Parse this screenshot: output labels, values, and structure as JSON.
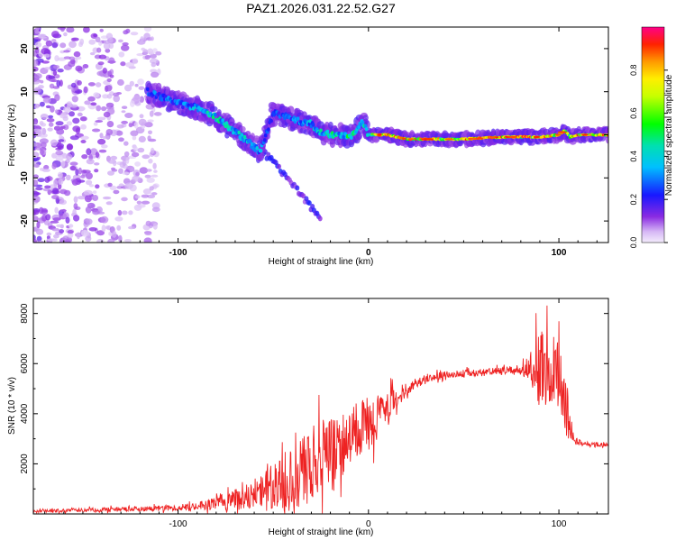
{
  "title": "PAZ1.2026.031.22.52.G27",
  "chart_data": [
    {
      "type": "heatmap",
      "name": "spectrogram",
      "xlabel": "Height of straight line (km)",
      "ylabel": "Frequency (Hz)",
      "xlim": [
        -176,
        126
      ],
      "ylim": [
        -25,
        25
      ],
      "xticks": [
        -100,
        0,
        100
      ],
      "xtick_labels": [
        "-100",
        "0",
        "100"
      ],
      "yticks": [
        20,
        10,
        0,
        -10,
        -20
      ],
      "ytick_labels": [
        "20",
        "10",
        "0",
        "-10",
        "-20"
      ],
      "colorbar": {
        "label": "Normalized spectral amplitude",
        "range": [
          0,
          1
        ],
        "ticks": [
          0,
          0.2,
          0.4,
          0.6,
          0.8
        ],
        "tick_labels": [
          "0.0",
          "0.2",
          "0.4",
          "0.6",
          "0.8"
        ]
      },
      "ridge": {
        "x": [
          -116,
          -110,
          -104,
          -98,
          -92,
          -86,
          -80,
          -74,
          -68,
          -62,
          -57,
          -50,
          -45,
          -40,
          -35,
          -30,
          -25,
          -20,
          -15,
          -10,
          -6,
          -3,
          0,
          5,
          10,
          20,
          30,
          50,
          70,
          90,
          100,
          103,
          106,
          110,
          126
        ],
        "freq": [
          10,
          9,
          8,
          7,
          6.5,
          5.5,
          4,
          2,
          0,
          -2,
          -4,
          5,
          4.5,
          3.5,
          3,
          2.5,
          0.5,
          0,
          0,
          -0.5,
          1,
          3,
          0,
          0,
          0,
          -1,
          -1,
          -1,
          -0.5,
          -0.5,
          0,
          1,
          -0.5,
          0,
          0
        ],
        "amp": [
          0.3,
          0.28,
          0.3,
          0.32,
          0.35,
          0.4,
          0.45,
          0.45,
          0.4,
          0.4,
          0.35,
          0.25,
          0.3,
          0.32,
          0.35,
          0.4,
          0.42,
          0.45,
          0.45,
          0.5,
          0.5,
          0.45,
          0.6,
          0.8,
          0.85,
          0.85,
          0.8,
          0.8,
          0.82,
          0.85,
          0.8,
          0.7,
          0.75,
          0.8,
          0.8
        ]
      },
      "branches": [
        {
          "x": [
            -55,
            -40,
            -30,
            -25
          ],
          "freq": [
            -4,
            -11,
            -17,
            -19
          ],
          "amp": 0.15
        }
      ],
      "noise_region": {
        "x_start": -176,
        "x_end": -120,
        "amp": 0.12
      }
    },
    {
      "type": "line",
      "name": "snr",
      "xlabel": "Height of straight line (km)",
      "ylabel": "SNR (10 * v/v)",
      "xlim": [
        -176,
        126
      ],
      "ylim": [
        0,
        8600
      ],
      "xticks": [
        -100,
        0,
        100
      ],
      "xtick_labels": [
        "-100",
        "0",
        "100"
      ],
      "yticks": [
        2000,
        4000,
        6000,
        8000
      ],
      "ytick_labels": [
        "2000",
        "4000",
        "6000",
        "8000"
      ],
      "series": [
        {
          "name": "SNR",
          "color": "#ee2222",
          "x": [
            -176,
            -150,
            -120,
            -100,
            -85,
            -70,
            -60,
            -50,
            -40,
            -30,
            -20,
            -12,
            -5,
            0,
            5,
            10,
            15,
            20,
            25,
            30,
            40,
            50,
            60,
            70,
            80,
            85,
            88,
            92,
            96,
            100,
            104,
            108,
            115,
            126
          ],
          "base": [
            100,
            150,
            200,
            250,
            350,
            600,
            800,
            1000,
            1500,
            2000,
            2500,
            2900,
            3300,
            3600,
            3900,
            4200,
            4600,
            5000,
            5200,
            5400,
            5550,
            5600,
            5650,
            5700,
            5750,
            5800,
            5800,
            5900,
            5800,
            5500,
            4000,
            2900,
            2800,
            2750
          ],
          "jitter": [
            60,
            80,
            100,
            120,
            200,
            400,
            600,
            1000,
            1400,
            1500,
            1300,
            1300,
            1200,
            1100,
            900,
            700,
            500,
            300,
            200,
            150,
            150,
            150,
            150,
            150,
            200,
            600,
            1500,
            1700,
            1500,
            1500,
            1200,
            150,
            100,
            80
          ]
        }
      ]
    }
  ]
}
